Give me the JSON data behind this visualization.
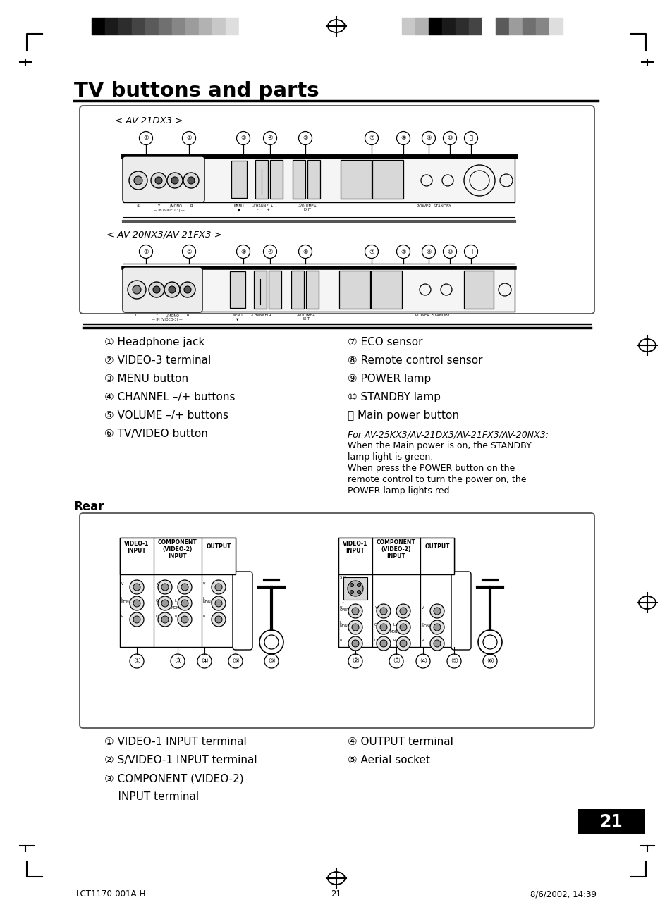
{
  "title": "TV buttons and parts",
  "page_number": "21",
  "footer_left": "LCT1170-001A-H",
  "footer_center": "21",
  "footer_right": "8/6/2002, 14:39",
  "header_bar_colors_left": [
    "#000000",
    "#1a1a1a",
    "#2d2d2d",
    "#444444",
    "#5a5a5a",
    "#707070",
    "#868686",
    "#9c9c9c",
    "#b2b2b2",
    "#c8c8c8",
    "#dedede",
    "#ffffff"
  ],
  "header_bar_colors_right": [
    "#c8c8c8",
    "#b2b2b2",
    "#000000",
    "#1a1a1a",
    "#2d2d2d",
    "#444444",
    "#ffffff",
    "#5a5a5a",
    "#9c9c9c",
    "#707070",
    "#868686",
    "#dedede"
  ],
  "model1": "< AV-21DX3 >",
  "model2": "< AV-20NX3/AV-21FX3 >",
  "numbered_items_left": [
    "① Headphone jack",
    "② VIDEO-3 terminal",
    "③ MENU button",
    "④ CHANNEL –/+ buttons",
    "⑤ VOLUME –/+ buttons",
    "⑥ TV/VIDEO button"
  ],
  "numbered_items_right": [
    "⑦ ECO sensor",
    "⑧ Remote control sensor",
    "⑨ POWER lamp",
    "⑩ STANDBY lamp",
    "⑪ Main power button"
  ],
  "italic_note_title": "For AV-25KX3/AV-21DX3/AV-21FX3/AV-20NX3:",
  "italic_note_lines": [
    "When the Main power is on, the STANDBY",
    "lamp light is green.",
    "When press the POWER button on the",
    "remote control to turn the power on, the",
    "POWER lamp lights red."
  ],
  "rear_label": "Rear",
  "rear_items_left": [
    "① VIDEO-1 INPUT terminal",
    "② S/VIDEO-1 INPUT terminal",
    "③ COMPONENT (VIDEO-2)",
    "    INPUT terminal"
  ],
  "rear_items_right": [
    "④ OUTPUT terminal",
    "⑤ Aerial socket"
  ],
  "bg_color": "#ffffff",
  "text_color": "#000000"
}
